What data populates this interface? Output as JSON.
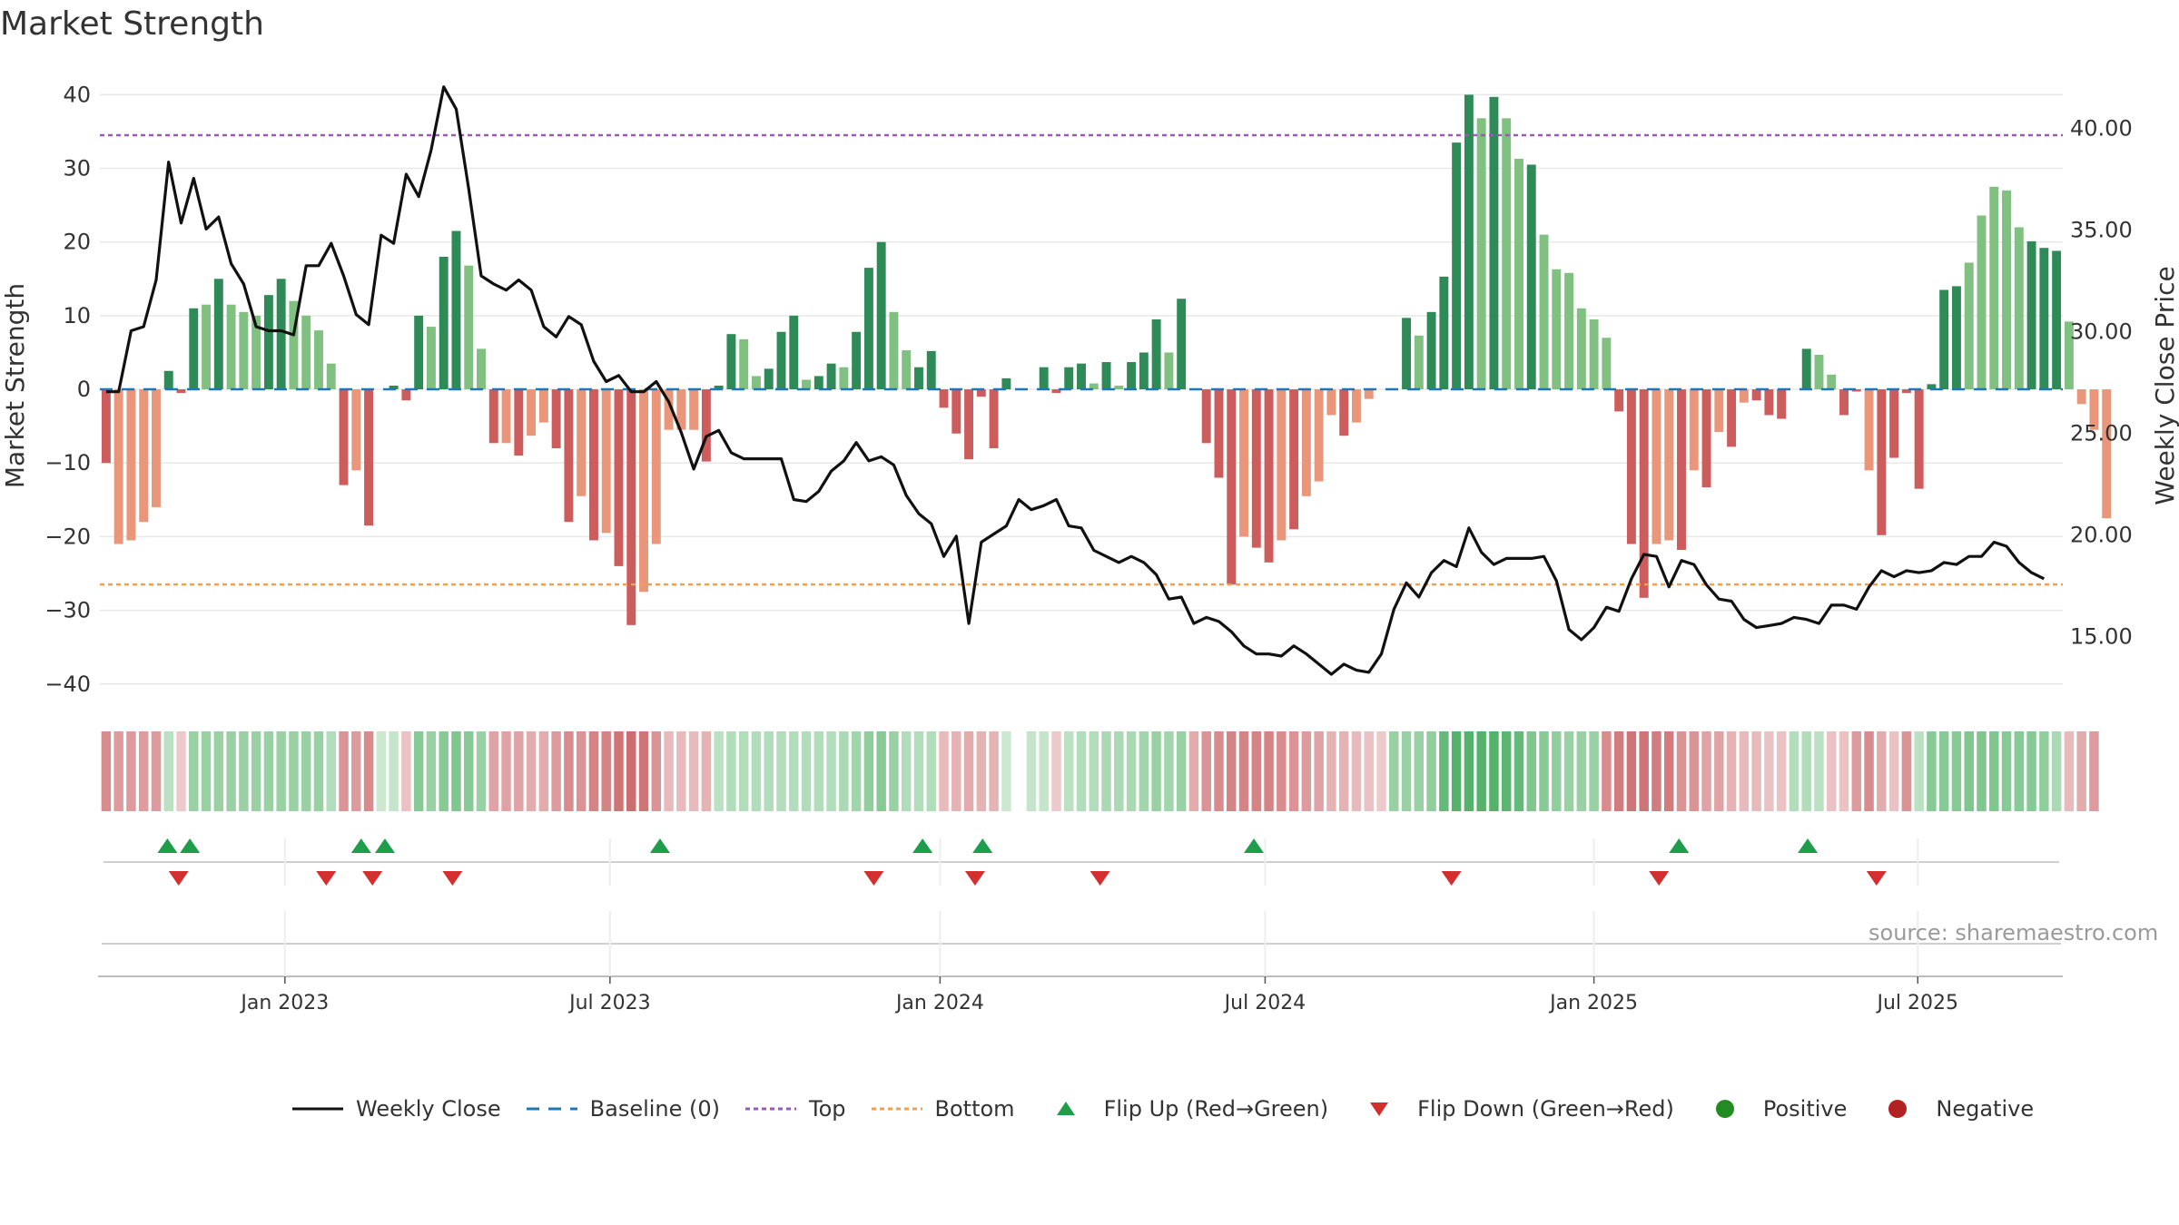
{
  "title": "Market Strength",
  "source": "source: sharemaestro.com",
  "colors": {
    "pos_dark": "#2e8b57",
    "pos_light": "#80c080",
    "neg_dark": "#cd5c5c",
    "neg_light": "#e9967a",
    "line": "#111111",
    "baseline": "#1f77b4",
    "top": "#9b59b6",
    "bottom": "#f0a050",
    "flip_up": "#1e9e4a",
    "flip_down": "#d32f2f",
    "grid": "#e8e8e8"
  },
  "chart_data": {
    "type": "bar+line",
    "title": "Market Strength",
    "ylabel": "Market Strength",
    "y2label": "Weekly Close Price",
    "ylim": [
      -42,
      43
    ],
    "y2lim": [
      11.9,
      42.7
    ],
    "yticks": [
      40,
      30,
      20,
      10,
      0,
      -10,
      -20,
      -30,
      -40
    ],
    "ytick_labels": [
      "40",
      "30",
      "20",
      "10",
      "0",
      "−10",
      "−20",
      "−30",
      "−40"
    ],
    "y2ticks": [
      40,
      35,
      30,
      25,
      20,
      15
    ],
    "y2tick_labels": [
      "40.00",
      "35.00",
      "30.00",
      "25.00",
      "20.00",
      "15.00"
    ],
    "top_level": 34.5,
    "bottom_level": -26.5,
    "baseline": 0,
    "x_start": "2022-09-23",
    "x_end": "2025-09-26",
    "weeks": 157,
    "xtick_labels": [
      "Jan 2023",
      "Jul 2023",
      "Jan 2024",
      "Jul 2024",
      "Jan 2025",
      "Jul 2025"
    ],
    "xtick_weeks": [
      14.3,
      40.3,
      66.7,
      92.7,
      119.0,
      144.9
    ],
    "strength": [
      -10,
      -21,
      -20.5,
      -18,
      -16,
      2.5,
      -0.5,
      11,
      11.5,
      15,
      11.5,
      10.5,
      10,
      12.8,
      15,
      12,
      10,
      8,
      3.5,
      -13,
      -11,
      -18.5,
      0,
      0.5,
      -1.5,
      10,
      8.5,
      18,
      21.5,
      16.8,
      5.5,
      -7.3,
      -7.3,
      -9,
      -6.3,
      -4.5,
      -8,
      -18,
      -14.5,
      -20.5,
      -19.5,
      -24,
      -32,
      -27.5,
      -21,
      -5.5,
      -5.5,
      -5.5,
      -9.8,
      0.5,
      7.5,
      6.8,
      1.8,
      2.8,
      7.8,
      10,
      1.3,
      1.8,
      3.5,
      3,
      7.8,
      16.5,
      20,
      10.5,
      5.3,
      3,
      5.2,
      -2.5,
      -6,
      -9.5,
      -1,
      -8,
      1.5,
      0,
      0,
      3,
      -0.5,
      3,
      3.5,
      0.8,
      3.7,
      0.5,
      3.7,
      5,
      9.5,
      5,
      12.3,
      0,
      -7.3,
      -12,
      -26.5,
      -20,
      -21.5,
      -23.5,
      -20.5,
      -19,
      -14.5,
      -12.5,
      -3.5,
      -6.3,
      -4.5,
      -1.3,
      0,
      0,
      9.7,
      7.3,
      10.5,
      15.3,
      33.5,
      40,
      36.8,
      39.7,
      36.8,
      31.3,
      30.5,
      21,
      16.3,
      15.8,
      11,
      9.5,
      7,
      -3,
      -21,
      -28.3,
      -21,
      -20.5,
      -21.8,
      -11,
      -13.3,
      -5.8,
      -7.8,
      -1.8,
      -1.5,
      -3.5,
      -4,
      0,
      5.5,
      4.7,
      2,
      -3.5,
      -0.3,
      -11,
      -19.8,
      -9.3,
      -0.5,
      -13.5,
      0.7,
      13.5,
      14,
      17.2,
      23.6,
      27.5,
      27,
      22,
      20.1,
      19.2,
      18.8,
      9.2,
      -2,
      -5.5,
      -17.5
    ],
    "shade": [
      1,
      2,
      2,
      2,
      2,
      1,
      1,
      1,
      2,
      1,
      2,
      2,
      2,
      1,
      1,
      2,
      2,
      2,
      2,
      1,
      2,
      1,
      1,
      1,
      1,
      1,
      2,
      1,
      1,
      2,
      2,
      1,
      2,
      1,
      2,
      2,
      1,
      1,
      2,
      1,
      2,
      1,
      1,
      2,
      2,
      2,
      2,
      2,
      1,
      1,
      1,
      2,
      2,
      1,
      1,
      1,
      2,
      1,
      1,
      2,
      1,
      1,
      1,
      2,
      2,
      1,
      1,
      1,
      1,
      1,
      1,
      1,
      1,
      2,
      2,
      1,
      1,
      1,
      1,
      2,
      1,
      2,
      1,
      1,
      1,
      2,
      1,
      2,
      1,
      1,
      1,
      2,
      1,
      1,
      2,
      1,
      2,
      2,
      2,
      1,
      2,
      2,
      2,
      2,
      1,
      2,
      1,
      1,
      1,
      1,
      2,
      1,
      2,
      2,
      1,
      2,
      2,
      2,
      2,
      2,
      2,
      1,
      1,
      1,
      2,
      2,
      1,
      2,
      1,
      2,
      1,
      2,
      1,
      1,
      1,
      2,
      1,
      2,
      2,
      1,
      1,
      2,
      1,
      1,
      1,
      1,
      1,
      1,
      1,
      2,
      2,
      2,
      2,
      2,
      1,
      1,
      1
    ],
    "heat_band": [
      -0.55,
      -0.45,
      -0.45,
      -0.45,
      -0.45,
      0.25,
      -0.15,
      0.45,
      0.45,
      0.45,
      0.45,
      0.45,
      0.45,
      0.45,
      0.45,
      0.45,
      0.45,
      0.45,
      0.3,
      -0.5,
      -0.45,
      -0.55,
      0.15,
      0.2,
      -0.2,
      0.55,
      0.45,
      0.55,
      0.6,
      0.55,
      0.45,
      -0.4,
      -0.4,
      -0.4,
      -0.35,
      -0.35,
      -0.45,
      -0.55,
      -0.5,
      -0.6,
      -0.6,
      -0.7,
      -0.75,
      -0.7,
      -0.5,
      -0.25,
      -0.25,
      -0.25,
      -0.3,
      0.25,
      0.3,
      0.3,
      0.3,
      0.3,
      0.3,
      0.3,
      0.3,
      0.3,
      0.3,
      0.35,
      0.4,
      0.5,
      0.55,
      0.45,
      0.3,
      0.3,
      0.3,
      -0.25,
      -0.3,
      -0.35,
      -0.3,
      -0.3,
      0.15,
      0.0,
      0.2,
      0.2,
      -0.15,
      0.25,
      0.3,
      0.3,
      0.35,
      0.35,
      0.35,
      0.4,
      0.45,
      0.4,
      0.45,
      -0.35,
      -0.5,
      -0.55,
      -0.6,
      -0.6,
      -0.6,
      -0.6,
      -0.55,
      -0.5,
      -0.45,
      -0.4,
      -0.3,
      -0.3,
      -0.25,
      -0.2,
      -0.15,
      0.45,
      0.45,
      0.45,
      0.5,
      0.75,
      0.85,
      0.85,
      0.85,
      0.85,
      0.8,
      0.75,
      0.6,
      0.55,
      0.5,
      0.45,
      0.45,
      0.45,
      -0.55,
      -0.65,
      -0.7,
      -0.7,
      -0.65,
      -0.65,
      -0.5,
      -0.5,
      -0.4,
      -0.4,
      -0.3,
      -0.25,
      -0.25,
      -0.2,
      -0.2,
      0.3,
      0.3,
      0.25,
      -0.2,
      -0.2,
      -0.45,
      -0.55,
      -0.35,
      -0.2,
      -0.5,
      0.25,
      0.55,
      0.55,
      0.55,
      0.6,
      0.6,
      0.6,
      0.55,
      0.55,
      0.55,
      0.5,
      0.35,
      -0.25,
      -0.35,
      -0.45
    ],
    "close": [
      27,
      27,
      30,
      30.2,
      32.5,
      38.3,
      35.3,
      37.5,
      35,
      35.6,
      33.3,
      32.3,
      30.2,
      30,
      30,
      29.8,
      33.2,
      33.2,
      34.3,
      32.7,
      30.8,
      30.3,
      34.7,
      34.3,
      37.7,
      36.6,
      38.9,
      42,
      40.9,
      37,
      32.7,
      32.3,
      32,
      32.5,
      32,
      30.2,
      29.7,
      30.7,
      30.3,
      28.5,
      27.5,
      27.8,
      27,
      27,
      27.5,
      26.5,
      25,
      23.2,
      24.8,
      25.1,
      24,
      23.7,
      23.7,
      23.7,
      23.7,
      21.7,
      21.6,
      22.1,
      23.1,
      23.6,
      24.5,
      23.6,
      23.8,
      23.4,
      21.9,
      21,
      20.5,
      18.9,
      19.9,
      15.6,
      19.6,
      20,
      20.4,
      21.7,
      21.2,
      21.4,
      21.7,
      20.4,
      20.3,
      19.2,
      18.9,
      18.6,
      18.9,
      18.6,
      18,
      16.8,
      16.9,
      15.6,
      15.9,
      15.7,
      15.2,
      14.5,
      14.1,
      14.1,
      14,
      14.5,
      14.1,
      13.6,
      13.1,
      13.6,
      13.3,
      13.2,
      14.1,
      16.3,
      17.6,
      16.9,
      18.1,
      18.7,
      18.4,
      20.3,
      19.1,
      18.5,
      18.8,
      18.8,
      18.8,
      18.9,
      17.7,
      15.3,
      14.8,
      15.4,
      16.4,
      16.2,
      17.8,
      19,
      18.9,
      17.4,
      18.7,
      18.5,
      17.5,
      16.8,
      16.7,
      15.8,
      15.4,
      15.5,
      15.6,
      15.9,
      15.8,
      15.6,
      16.5,
      16.5,
      16.3,
      17.4,
      18.2,
      17.9,
      18.2,
      18.1,
      18.2,
      18.6,
      18.5,
      18.9,
      18.9,
      19.6,
      19.4,
      18.6,
      18.1,
      17.8
    ],
    "flip_up_weeks": [
      4.9,
      6.7,
      20.4,
      22.3,
      44.3,
      65.3,
      70.1,
      91.8,
      125.8,
      136.1
    ],
    "flip_down_weeks": [
      5.8,
      17.6,
      21.3,
      27.7,
      61.4,
      69.5,
      79.5,
      107.6,
      124.2,
      141.6
    ],
    "legend": [
      {
        "label": "Weekly Close",
        "kind": "line"
      },
      {
        "label": "Baseline (0)",
        "kind": "dash"
      },
      {
        "label": "Top",
        "kind": "dot-top"
      },
      {
        "label": "Bottom",
        "kind": "dot-bottom"
      },
      {
        "label": "Flip Up (Red→Green)",
        "kind": "tri-up"
      },
      {
        "label": "Flip Down (Green→Red)",
        "kind": "tri-down"
      },
      {
        "label": "Positive",
        "kind": "dot-pos"
      },
      {
        "label": "Negative",
        "kind": "dot-neg"
      }
    ]
  }
}
